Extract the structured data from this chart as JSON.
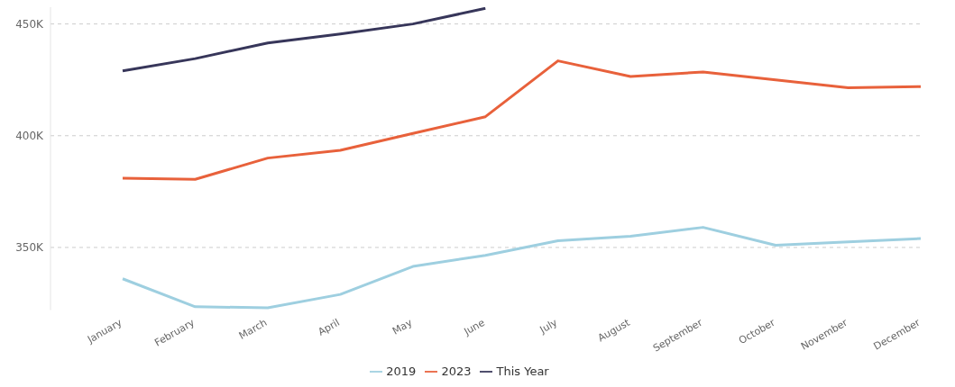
{
  "chart_data": {
    "type": "line",
    "categories": [
      "January",
      "February",
      "March",
      "April",
      "May",
      "June",
      "July",
      "August",
      "September",
      "October",
      "November",
      "December"
    ],
    "series": [
      {
        "name": "2019",
        "color": "#9ecfe0",
        "values": [
          336000,
          323500,
          323000,
          329000,
          341500,
          346500,
          353000,
          355000,
          359000,
          351000,
          352500,
          354000
        ]
      },
      {
        "name": "2023",
        "color": "#e8613b",
        "values": [
          381000,
          380500,
          390000,
          393500,
          401000,
          408500,
          433500,
          426500,
          428500,
          425000,
          421500,
          422000
        ]
      },
      {
        "name": "This Year",
        "color": "#37365a",
        "values": [
          429000,
          434500,
          441500,
          445500,
          450000,
          457000,
          null,
          null,
          null,
          null,
          null,
          null
        ]
      }
    ],
    "ylim": [
      322000,
      457500
    ],
    "yticks": [
      {
        "value": 350000,
        "label": "350K"
      },
      {
        "value": 400000,
        "label": "400K"
      },
      {
        "value": 450000,
        "label": "450K"
      }
    ],
    "grid": "y",
    "legend": "bottom",
    "marker": "none",
    "line_style": "solid"
  }
}
